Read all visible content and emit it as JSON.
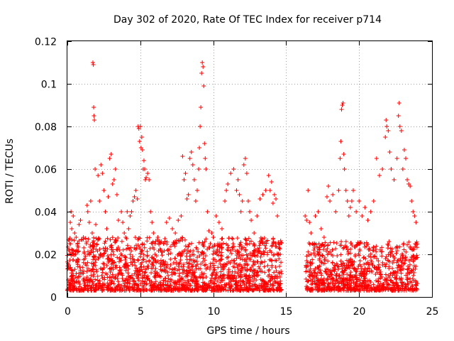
{
  "chart_data": {
    "type": "scatter",
    "title": "Day 302 of 2020, Rate Of TEC Index for receiver p714",
    "xlabel": "GPS time / hours",
    "ylabel": "ROTI / TECUs",
    "xlim": [
      0,
      25
    ],
    "ylim": [
      0,
      0.12
    ],
    "xticks": [
      0,
      5,
      10,
      15,
      20,
      25
    ],
    "yticks": [
      0,
      0.02,
      0.04,
      0.06,
      0.08,
      0.1,
      0.12
    ],
    "xtick_labels": [
      "0",
      "5",
      "10",
      "15",
      "20",
      "25"
    ],
    "ytick_labels": [
      "0",
      "0.02",
      "0.04",
      "0.06",
      "0.08",
      "0.1",
      "0.12"
    ],
    "grid": true,
    "marker": "+",
    "series_color": "#ff0000",
    "series": [
      {
        "name": "p714",
        "points": [
          [
            0.05,
            0.008
          ],
          [
            0.1,
            0.015
          ],
          [
            0.15,
            0.025
          ],
          [
            0.2,
            0.035
          ],
          [
            0.25,
            0.04
          ],
          [
            0.3,
            0.032
          ],
          [
            0.35,
            0.022
          ],
          [
            0.4,
            0.038
          ],
          [
            0.5,
            0.03
          ],
          [
            0.6,
            0.028
          ],
          [
            0.7,
            0.024
          ],
          [
            0.8,
            0.034
          ],
          [
            0.9,
            0.036
          ],
          [
            1.0,
            0.027
          ],
          [
            1.1,
            0.028
          ],
          [
            1.2,
            0.018
          ],
          [
            1.3,
            0.025
          ],
          [
            1.35,
            0.043
          ],
          [
            1.4,
            0.04
          ],
          [
            1.5,
            0.035
          ],
          [
            1.6,
            0.045
          ],
          [
            1.7,
            0.03
          ],
          [
            1.75,
            0.11
          ],
          [
            1.78,
            0.109
          ],
          [
            1.8,
            0.089
          ],
          [
            1.82,
            0.085
          ],
          [
            1.85,
            0.083
          ],
          [
            1.9,
            0.06
          ],
          [
            1.95,
            0.034
          ],
          [
            2.1,
            0.057
          ],
          [
            2.2,
            0.045
          ],
          [
            2.3,
            0.062
          ],
          [
            2.4,
            0.058
          ],
          [
            2.5,
            0.05
          ],
          [
            2.6,
            0.04
          ],
          [
            2.7,
            0.032
          ],
          [
            2.8,
            0.047
          ],
          [
            2.9,
            0.065
          ],
          [
            3.0,
            0.067
          ],
          [
            3.1,
            0.053
          ],
          [
            3.2,
            0.055
          ],
          [
            3.3,
            0.06
          ],
          [
            3.4,
            0.048
          ],
          [
            3.5,
            0.036
          ],
          [
            3.7,
            0.04
          ],
          [
            3.8,
            0.035
          ],
          [
            3.9,
            0.03
          ],
          [
            4.0,
            0.028
          ],
          [
            4.1,
            0.04
          ],
          [
            4.2,
            0.032
          ],
          [
            4.3,
            0.038
          ],
          [
            4.4,
            0.04
          ],
          [
            4.5,
            0.045
          ],
          [
            4.6,
            0.047
          ],
          [
            4.7,
            0.05
          ],
          [
            4.8,
            0.046
          ],
          [
            4.85,
            0.08
          ],
          [
            4.9,
            0.079
          ],
          [
            4.95,
            0.073
          ],
          [
            5.0,
            0.08
          ],
          [
            5.05,
            0.07
          ],
          [
            5.1,
            0.075
          ],
          [
            5.15,
            0.069
          ],
          [
            5.2,
            0.06
          ],
          [
            5.25,
            0.064
          ],
          [
            5.3,
            0.06
          ],
          [
            5.35,
            0.055
          ],
          [
            5.4,
            0.056
          ],
          [
            5.5,
            0.058
          ],
          [
            5.6,
            0.055
          ],
          [
            5.7,
            0.04
          ],
          [
            5.8,
            0.035
          ],
          [
            5.9,
            0.03
          ],
          [
            6.0,
            0.025
          ],
          [
            6.2,
            0.028
          ],
          [
            6.4,
            0.022
          ],
          [
            6.6,
            0.025
          ],
          [
            6.8,
            0.035
          ],
          [
            7.0,
            0.037
          ],
          [
            7.2,
            0.032
          ],
          [
            7.4,
            0.03
          ],
          [
            7.6,
            0.036
          ],
          [
            7.8,
            0.038
          ],
          [
            7.9,
            0.066
          ],
          [
            8.0,
            0.055
          ],
          [
            8.1,
            0.058
          ],
          [
            8.2,
            0.046
          ],
          [
            8.3,
            0.048
          ],
          [
            8.4,
            0.065
          ],
          [
            8.5,
            0.068
          ],
          [
            8.6,
            0.062
          ],
          [
            8.7,
            0.055
          ],
          [
            8.8,
            0.045
          ],
          [
            8.9,
            0.05
          ],
          [
            9.0,
            0.06
          ],
          [
            9.05,
            0.07
          ],
          [
            9.1,
            0.08
          ],
          [
            9.15,
            0.089
          ],
          [
            9.2,
            0.105
          ],
          [
            9.25,
            0.11
          ],
          [
            9.3,
            0.108
          ],
          [
            9.35,
            0.099
          ],
          [
            9.4,
            0.072
          ],
          [
            9.45,
            0.065
          ],
          [
            9.5,
            0.06
          ],
          [
            9.6,
            0.04
          ],
          [
            9.7,
            0.031
          ],
          [
            9.8,
            0.025
          ],
          [
            9.9,
            0.03
          ],
          [
            10.0,
            0.028
          ],
          [
            10.2,
            0.038
          ],
          [
            10.4,
            0.035
          ],
          [
            10.6,
            0.032
          ],
          [
            10.8,
            0.045
          ],
          [
            10.9,
            0.05
          ],
          [
            11.0,
            0.053
          ],
          [
            11.2,
            0.058
          ],
          [
            11.4,
            0.06
          ],
          [
            11.6,
            0.05
          ],
          [
            11.7,
            0.055
          ],
          [
            11.8,
            0.048
          ],
          [
            11.9,
            0.04
          ],
          [
            12.0,
            0.045
          ],
          [
            12.1,
            0.062
          ],
          [
            12.2,
            0.065
          ],
          [
            12.3,
            0.058
          ],
          [
            12.4,
            0.045
          ],
          [
            12.5,
            0.04
          ],
          [
            12.6,
            0.036
          ],
          [
            12.8,
            0.03
          ],
          [
            13.0,
            0.038
          ],
          [
            13.2,
            0.046
          ],
          [
            13.4,
            0.048
          ],
          [
            13.6,
            0.05
          ],
          [
            13.8,
            0.057
          ],
          [
            13.9,
            0.05
          ],
          [
            14.0,
            0.054
          ],
          [
            14.1,
            0.044
          ],
          [
            14.2,
            0.048
          ],
          [
            14.3,
            0.046
          ],
          [
            14.4,
            0.038
          ],
          [
            14.5,
            0.025
          ],
          [
            14.6,
            0.02
          ],
          [
            16.3,
            0.038
          ],
          [
            16.4,
            0.036
          ],
          [
            16.5,
            0.05
          ],
          [
            16.6,
            0.035
          ],
          [
            16.7,
            0.03
          ],
          [
            16.8,
            0.025
          ],
          [
            17.0,
            0.038
          ],
          [
            17.2,
            0.04
          ],
          [
            17.4,
            0.032
          ],
          [
            17.6,
            0.028
          ],
          [
            17.8,
            0.047
          ],
          [
            17.9,
            0.052
          ],
          [
            18.0,
            0.045
          ],
          [
            18.2,
            0.048
          ],
          [
            18.4,
            0.04
          ],
          [
            18.6,
            0.05
          ],
          [
            18.7,
            0.065
          ],
          [
            18.75,
            0.073
          ],
          [
            18.8,
            0.088
          ],
          [
            18.85,
            0.09
          ],
          [
            18.9,
            0.091
          ],
          [
            18.95,
            0.067
          ],
          [
            19.0,
            0.06
          ],
          [
            19.1,
            0.05
          ],
          [
            19.2,
            0.045
          ],
          [
            19.3,
            0.038
          ],
          [
            19.4,
            0.042
          ],
          [
            19.5,
            0.045
          ],
          [
            19.6,
            0.05
          ],
          [
            19.8,
            0.04
          ],
          [
            20.0,
            0.045
          ],
          [
            20.2,
            0.038
          ],
          [
            20.4,
            0.042
          ],
          [
            20.6,
            0.036
          ],
          [
            20.8,
            0.04
          ],
          [
            21.0,
            0.045
          ],
          [
            21.2,
            0.065
          ],
          [
            21.4,
            0.057
          ],
          [
            21.6,
            0.06
          ],
          [
            21.8,
            0.075
          ],
          [
            21.85,
            0.083
          ],
          [
            21.9,
            0.08
          ],
          [
            22.0,
            0.078
          ],
          [
            22.1,
            0.068
          ],
          [
            22.2,
            0.06
          ],
          [
            22.4,
            0.055
          ],
          [
            22.6,
            0.065
          ],
          [
            22.7,
            0.085
          ],
          [
            22.75,
            0.091
          ],
          [
            22.8,
            0.08
          ],
          [
            22.9,
            0.078
          ],
          [
            23.0,
            0.06
          ],
          [
            23.1,
            0.069
          ],
          [
            23.2,
            0.065
          ],
          [
            23.3,
            0.055
          ],
          [
            23.4,
            0.053
          ],
          [
            23.5,
            0.052
          ],
          [
            23.6,
            0.045
          ],
          [
            23.7,
            0.04
          ],
          [
            23.8,
            0.038
          ],
          [
            23.9,
            0.035
          ]
        ]
      }
    ],
    "dense_band": {
      "segments": [
        {
          "x0": 0.0,
          "x1": 14.7,
          "ymin": 0.003,
          "ymax": 0.028
        },
        {
          "x0": 16.3,
          "x1": 24.0,
          "ymin": 0.003,
          "ymax": 0.026
        }
      ],
      "count": 2600
    }
  }
}
